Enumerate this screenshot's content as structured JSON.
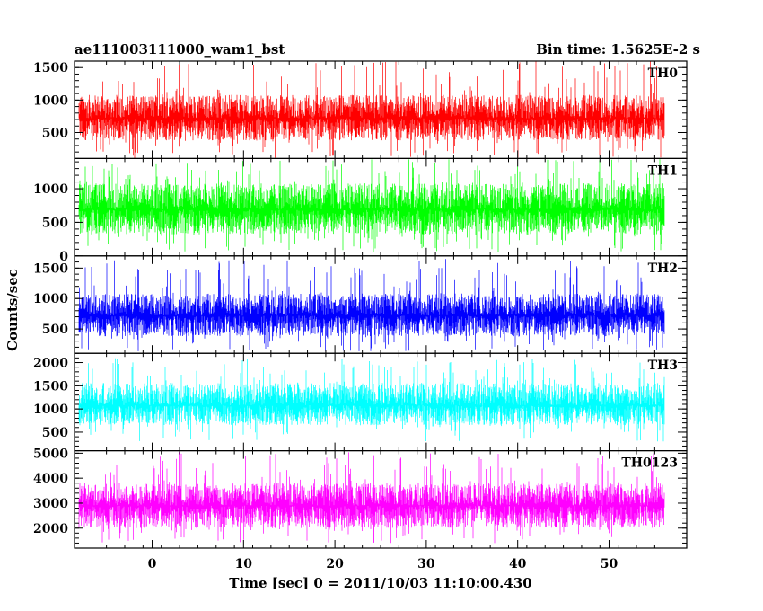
{
  "header": {
    "title": "ae111003111000_wam1_bst",
    "bin_time": "Bin time: 1.5625E-2 s"
  },
  "chart_data": {
    "type": "line",
    "title": "ae111003111000_wam1_bst",
    "subtitle": "Bin time: 1.5625E-2 s",
    "xlabel": "Time [sec] 0 = 2011/10/03 11:10:00.430",
    "ylabel": "Counts/sec",
    "xlim": [
      -8.5,
      58.5
    ],
    "x_ticks": [
      0,
      10,
      20,
      30,
      40,
      50
    ],
    "x_range_data": [
      -8,
      56
    ],
    "bin_time": 0.015625,
    "grid": false,
    "legend": "none",
    "panels": [
      {
        "name": "TH0",
        "color": "#ff0000",
        "ylim": [
          100,
          1600
        ],
        "y_ticks": [
          500,
          1000,
          1500
        ],
        "mean": 720,
        "typ_low": 380,
        "typ_high": 1080,
        "spike_low": 100,
        "spike_high": 1600
      },
      {
        "name": "TH1",
        "color": "#00ff00",
        "ylim": [
          0,
          1450
        ],
        "y_ticks": [
          0,
          500,
          1000
        ],
        "mean": 690,
        "typ_low": 320,
        "typ_high": 1080,
        "spike_low": 60,
        "spike_high": 1440
      },
      {
        "name": "TH2",
        "color": "#0000ff",
        "ylim": [
          100,
          1700
        ],
        "y_ticks": [
          500,
          1000,
          1500
        ],
        "mean": 720,
        "typ_low": 380,
        "typ_high": 1080,
        "spike_low": 130,
        "spike_high": 1650
      },
      {
        "name": "TH3",
        "color": "#00ffff",
        "ylim": [
          100,
          2200
        ],
        "y_ticks": [
          500,
          1000,
          1500,
          2000
        ],
        "mean": 1080,
        "typ_low": 650,
        "typ_high": 1560,
        "spike_low": 300,
        "spike_high": 2100
      },
      {
        "name": "TH0123",
        "color": "#ff00ff",
        "ylim": [
          1200,
          5100
        ],
        "y_ticks": [
          2000,
          3000,
          4000,
          5000
        ],
        "mean": 2900,
        "typ_low": 2000,
        "typ_high": 3800,
        "spike_low": 1400,
        "spike_high": 5050
      }
    ]
  }
}
